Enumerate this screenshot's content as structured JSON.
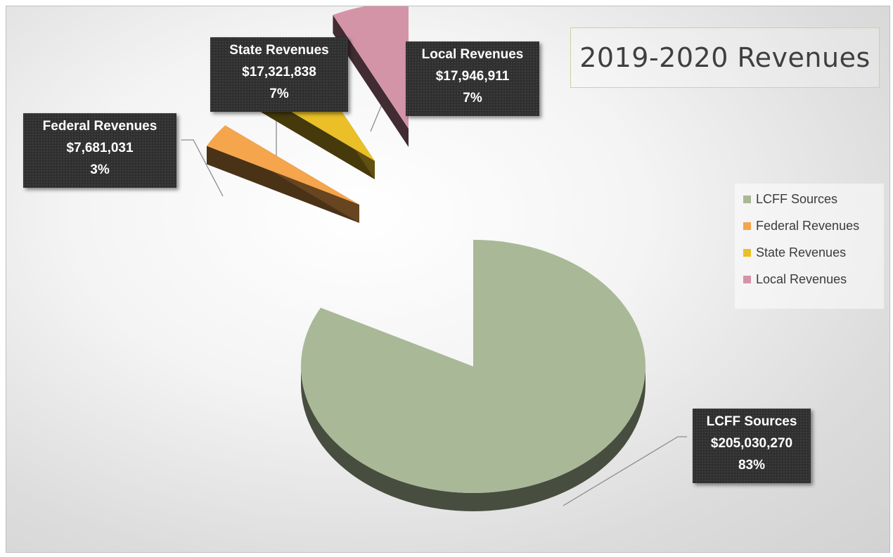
{
  "chart_data": {
    "type": "pie",
    "title": "2019-2020 Revenues",
    "three_d": true,
    "exploded": true,
    "legend_position": "right",
    "slices": [
      {
        "label": "LCFF Sources",
        "value": 205030270,
        "value_label": "$205,030,270",
        "percent_label": "83%",
        "color": "#a9b896"
      },
      {
        "label": "Federal Revenues",
        "value": 7681031,
        "value_label": "$7,681,031",
        "percent_label": "3%",
        "color": "#f5a54c"
      },
      {
        "label": "State Revenues",
        "value": 17321838,
        "value_label": "$17,321,838",
        "percent_label": "7%",
        "color": "#eabf27"
      },
      {
        "label": "Local Revenues",
        "value": 17946911,
        "value_label": "$17,946,911",
        "percent_label": "7%",
        "color": "#d494a8"
      }
    ]
  }
}
